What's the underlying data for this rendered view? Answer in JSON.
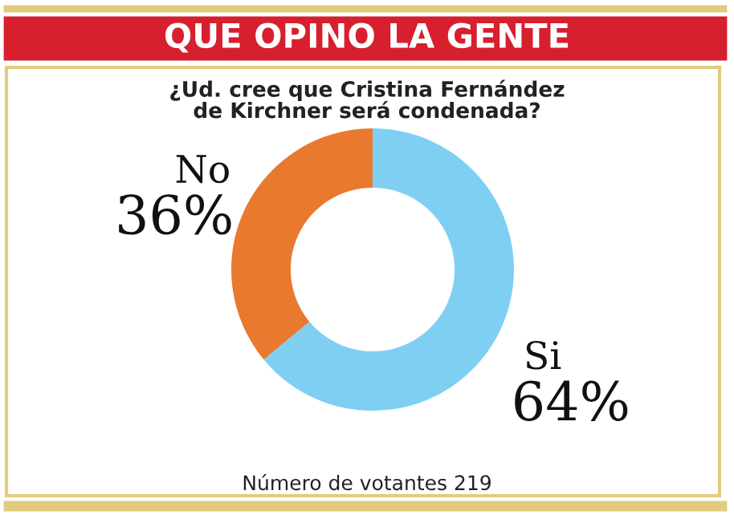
{
  "chart_data": {
    "type": "donut",
    "title": "QUE OPINO LA GENTE",
    "subtitle": "¿Ud. cree que Cristina Fernández\nde Kirchner será condenada?",
    "categories": [
      "Si",
      "No"
    ],
    "values": [
      64,
      36
    ],
    "colors": [
      "#7fcff3",
      "#e8792e"
    ],
    "value_labels": [
      "64%",
      "36%"
    ],
    "annotations": [
      "Número de votantes 219"
    ]
  }
}
